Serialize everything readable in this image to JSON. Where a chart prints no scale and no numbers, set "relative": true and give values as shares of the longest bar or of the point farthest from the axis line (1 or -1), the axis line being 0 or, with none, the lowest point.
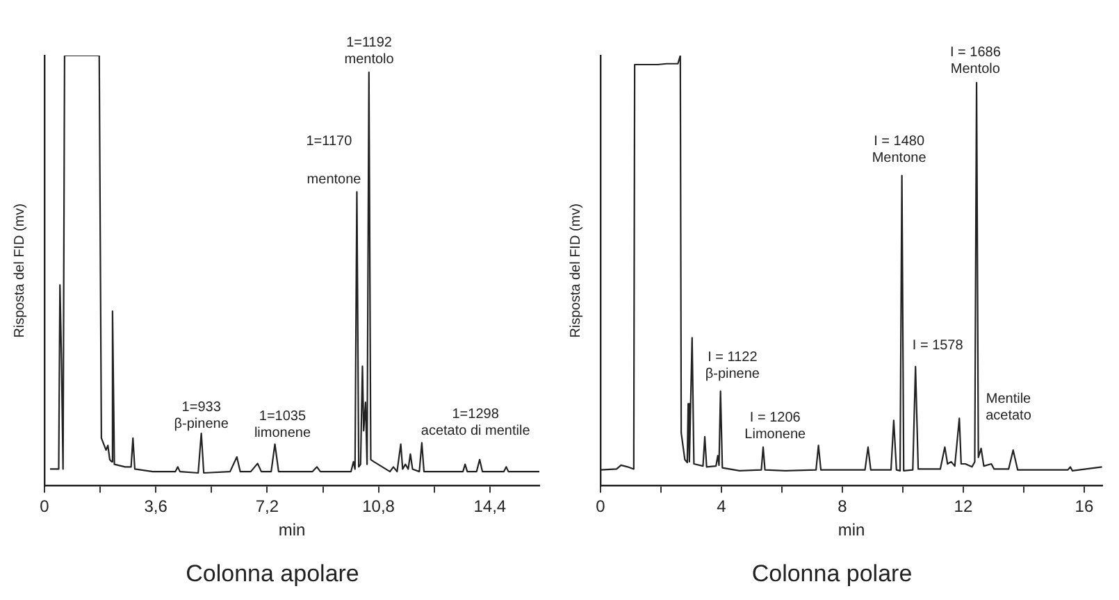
{
  "chart_data": [
    {
      "type": "line",
      "title": "Colonna apolare",
      "xlabel": "min",
      "ylabel": "Risposta del FID (mv)",
      "relative": true,
      "legend": false,
      "grid": false,
      "xlim": [
        0,
        16
      ],
      "xticks": [
        0,
        {
          "value": 1.8,
          "label": null
        },
        {
          "value": 3.6,
          "label": "3,6"
        },
        {
          "value": 5.4,
          "label": null
        },
        {
          "value": 7.2,
          "label": "7,2"
        },
        {
          "value": 9,
          "label": null
        },
        {
          "value": 10.8,
          "label": "10,8"
        },
        {
          "value": 12.6,
          "label": null
        },
        {
          "value": 14.4,
          "label": "14,4"
        }
      ],
      "annotations": [
        "1=1192\nmentolo",
        "1=1170",
        "mentone",
        "1=933\nβ-pinene",
        "1=1035\nlimonene",
        "1=1298\nacetato di mentile"
      ],
      "series": [
        {
          "color": "#222222",
          "x": [
            0.18,
            0.4,
            0.46,
            0.5,
            0.55,
            0.6,
            0.65,
            1.77,
            1.84,
            1.99,
            2.05,
            2.11,
            2.17,
            2.2,
            2.26,
            2.61,
            2.8,
            2.86,
            2.92,
            3.5,
            4.23,
            4.31,
            4.38,
            4.97,
            5.07,
            5.15,
            6.0,
            6.22,
            6.33,
            6.67,
            6.89,
            7.01,
            7.33,
            7.45,
            7.57,
            8.66,
            8.81,
            8.92,
            9.91,
            9.99,
            10.04,
            10.1,
            10.16,
            10.22,
            10.28,
            10.32,
            10.38,
            10.43,
            10.49,
            10.55,
            10.65,
            11.17,
            11.28,
            11.4,
            11.52,
            11.58,
            11.67,
            11.76,
            11.83,
            11.9,
            12.12,
            12.2,
            12.27,
            13.53,
            13.6,
            13.67,
            13.97,
            14.07,
            14.16,
            14.85,
            14.93,
            15.0,
            16.0
          ],
          "values": [
            0.039,
            0.039,
            0.039,
            0.467,
            0.289,
            0.039,
            1.0,
            1.0,
            0.111,
            0.083,
            0.094,
            0.061,
            0.056,
            0.406,
            0.05,
            0.044,
            0.044,
            0.111,
            0.039,
            0.033,
            0.033,
            0.044,
            0.033,
            0.03,
            0.122,
            0.03,
            0.033,
            0.067,
            0.033,
            0.033,
            0.052,
            0.033,
            0.033,
            0.097,
            0.033,
            0.033,
            0.044,
            0.033,
            0.033,
            0.056,
            0.039,
            0.683,
            0.044,
            0.05,
            0.278,
            0.128,
            0.194,
            0.05,
            0.961,
            0.061,
            0.056,
            0.033,
            0.044,
            0.033,
            0.097,
            0.039,
            0.05,
            0.039,
            0.074,
            0.039,
            0.033,
            0.1,
            0.033,
            0.033,
            0.05,
            0.033,
            0.033,
            0.061,
            0.033,
            0.033,
            0.044,
            0.033,
            0.033
          ]
        }
      ]
    },
    {
      "type": "line",
      "title": "Colonna polare",
      "xlabel": "min",
      "ylabel": "Risposta del FID (mv)",
      "relative": true,
      "legend": false,
      "grid": false,
      "xlim": [
        0,
        16.6
      ],
      "xticks": [
        0,
        {
          "value": 2,
          "label": null
        },
        4,
        {
          "value": 6,
          "label": null
        },
        8,
        {
          "value": 10,
          "label": null
        },
        12,
        {
          "value": 14,
          "label": null
        },
        16
      ],
      "annotations": [
        "I = 1686\nMentolo",
        "I = 1480\nMentone",
        "I = 1578",
        "I = 1122\nβ-pinene",
        "I = 1206\nLimonene",
        "Mentile\nacetato"
      ],
      "series": [
        {
          "color": "#222222",
          "x": [
            0.0,
            0.53,
            0.68,
            0.9,
            1.1,
            1.13,
            1.89,
            2.19,
            2.56,
            2.64,
            2.67,
            2.79,
            2.87,
            2.9,
            2.94,
            3.03,
            3.09,
            3.39,
            3.45,
            3.51,
            3.82,
            3.88,
            3.92,
            3.97,
            4.03,
            4.6,
            5.32,
            5.38,
            5.44,
            6.11,
            7.13,
            7.21,
            7.29,
            8.75,
            8.85,
            8.94,
            9.61,
            9.7,
            9.79,
            9.91,
            9.97,
            10.03,
            10.33,
            10.42,
            10.51,
            11.24,
            11.39,
            11.48,
            11.6,
            11.72,
            11.87,
            11.93,
            12.07,
            12.29,
            12.38,
            12.44,
            12.5,
            12.59,
            12.68,
            12.93,
            13.02,
            13.5,
            13.65,
            13.8,
            14.18,
            15.46,
            15.54,
            15.61,
            16.59
          ],
          "values": [
            0.037,
            0.039,
            0.048,
            0.044,
            0.039,
            0.979,
            0.979,
            0.981,
            0.981,
            1.0,
            0.123,
            0.061,
            0.054,
            0.191,
            0.056,
            0.344,
            0.051,
            0.046,
            0.114,
            0.044,
            0.046,
            0.07,
            0.048,
            0.22,
            0.042,
            0.035,
            0.037,
            0.09,
            0.037,
            0.035,
            0.037,
            0.094,
            0.037,
            0.037,
            0.09,
            0.037,
            0.037,
            0.152,
            0.037,
            0.035,
            0.721,
            0.035,
            0.037,
            0.277,
            0.039,
            0.039,
            0.09,
            0.051,
            0.056,
            0.046,
            0.157,
            0.051,
            0.051,
            0.044,
            0.056,
            0.937,
            0.066,
            0.087,
            0.046,
            0.051,
            0.039,
            0.039,
            0.083,
            0.037,
            0.037,
            0.037,
            0.044,
            0.035,
            0.044
          ]
        }
      ]
    }
  ]
}
